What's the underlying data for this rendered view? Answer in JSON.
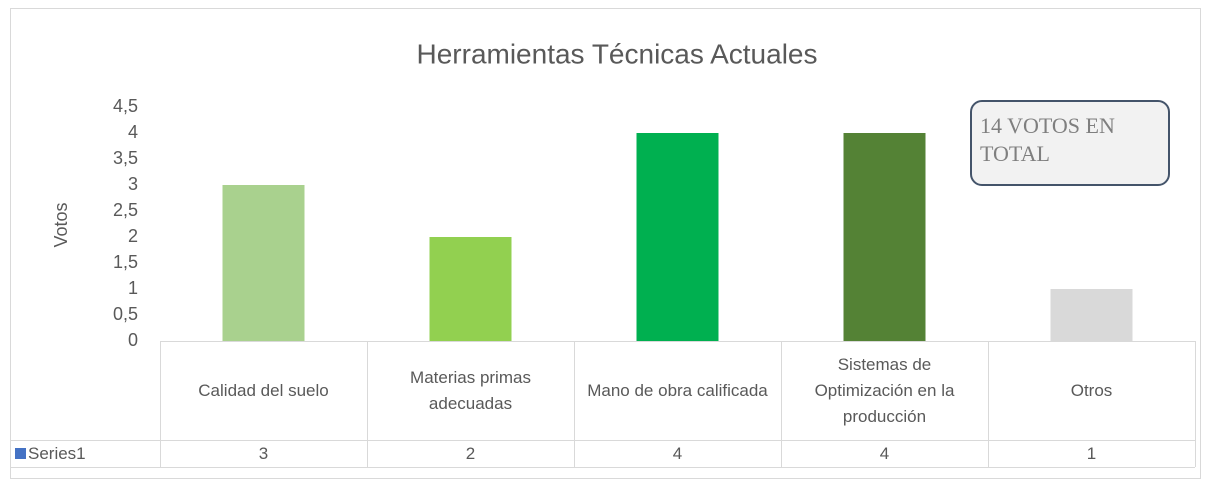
{
  "chart_data": {
    "type": "bar",
    "title": "Herramientas Técnicas Actuales",
    "y_label": "Votos",
    "annotation": "14 VOTOS EN TOTAL",
    "categories": [
      "Calidad del suelo",
      "Materias primas adecuadas",
      "Mano de obra calificada",
      "Sistemas de Optimización en la producción",
      "Otros"
    ],
    "series": [
      {
        "name": "Series1",
        "color": "#4472c4",
        "values": [
          3,
          2,
          4,
          4,
          1
        ]
      }
    ],
    "bar_colors": [
      "#a9d18e",
      "#92d050",
      "#00b050",
      "#548235",
      "#d9d9d9"
    ],
    "ylim": [
      0,
      4.5
    ],
    "yticks": [
      0,
      {
        "value": 0.5,
        "label": "0,5"
      },
      1,
      {
        "value": 1.5,
        "label": "1,5"
      },
      2,
      {
        "value": 2.5,
        "label": "2,5"
      },
      3,
      {
        "value": 3.5,
        "label": "3,5"
      },
      4,
      {
        "value": 4.5,
        "label": "4,5"
      }
    ],
    "grid": false,
    "data_table": true
  }
}
